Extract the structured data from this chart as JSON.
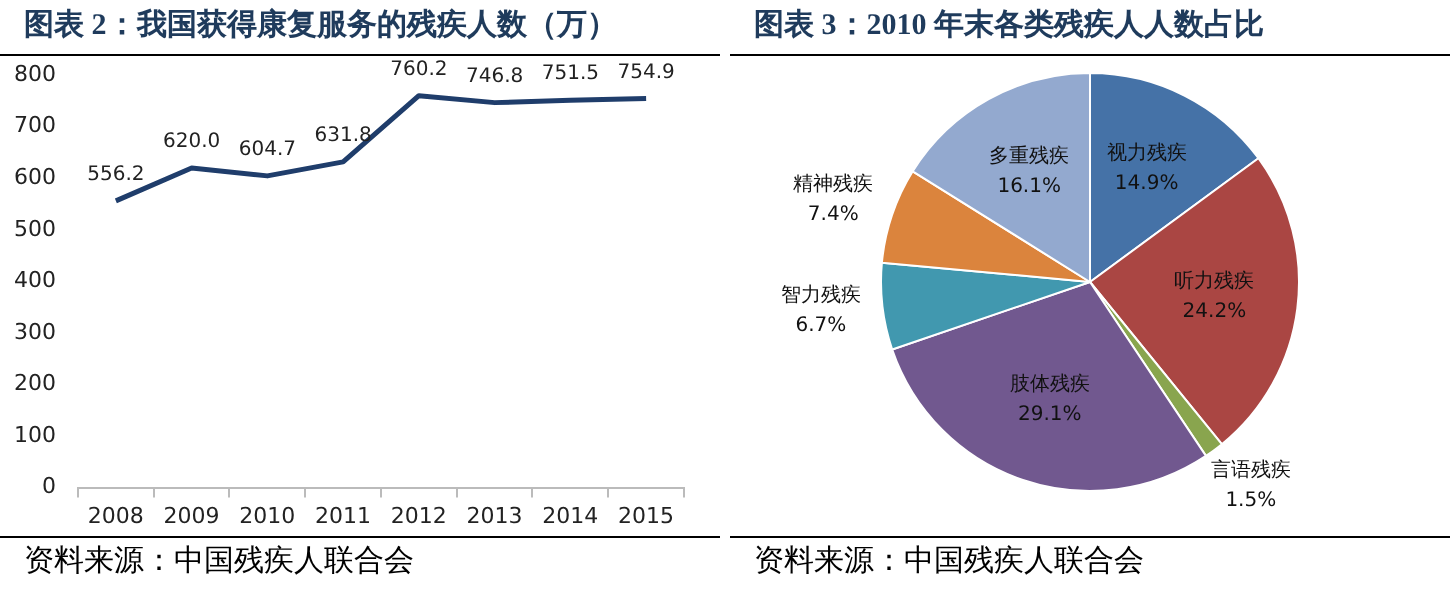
{
  "chart_data": [
    {
      "type": "line",
      "title": "图表 2：我国获得康复服务的残疾人数（万）",
      "categories": [
        "2008",
        "2009",
        "2010",
        "2011",
        "2012",
        "2013",
        "2014",
        "2015"
      ],
      "values": [
        556.2,
        620.0,
        604.7,
        631.8,
        760.2,
        746.8,
        751.5,
        754.9
      ],
      "value_labels": [
        "556.2",
        "620.0",
        "604.7",
        "631.8",
        "760.2",
        "746.8",
        "751.5",
        "754.9"
      ],
      "color": "#1f3d6b",
      "marker": "none",
      "ylim": [
        0,
        800
      ],
      "yticks": [
        0,
        100,
        200,
        300,
        400,
        500,
        600,
        700,
        800
      ],
      "grid": false,
      "legend": false,
      "annotations": [
        "资料来源：中国残疾人联合会"
      ]
    },
    {
      "type": "pie",
      "title": "图表 3：2010 年末各类残疾人人数占比",
      "categories": [
        "视力残疾",
        "听力残疾",
        "言语残疾",
        "肢体残疾",
        "智力残疾",
        "精神残疾",
        "多重残疾"
      ],
      "values": [
        14.9,
        24.2,
        1.5,
        29.1,
        6.7,
        7.4,
        16.1
      ],
      "colors": [
        "#4572a7",
        "#aa4643",
        "#89a54e",
        "#71588f",
        "#4198af",
        "#db843d",
        "#93a9cf"
      ],
      "value_labels": [
        "14.9%",
        "24.2%",
        "1.5%",
        "29.1%",
        "6.7%",
        "7.4%",
        "16.1%"
      ],
      "legend": false,
      "annotations": [
        "资料来源：中国残疾人联合会"
      ]
    }
  ]
}
